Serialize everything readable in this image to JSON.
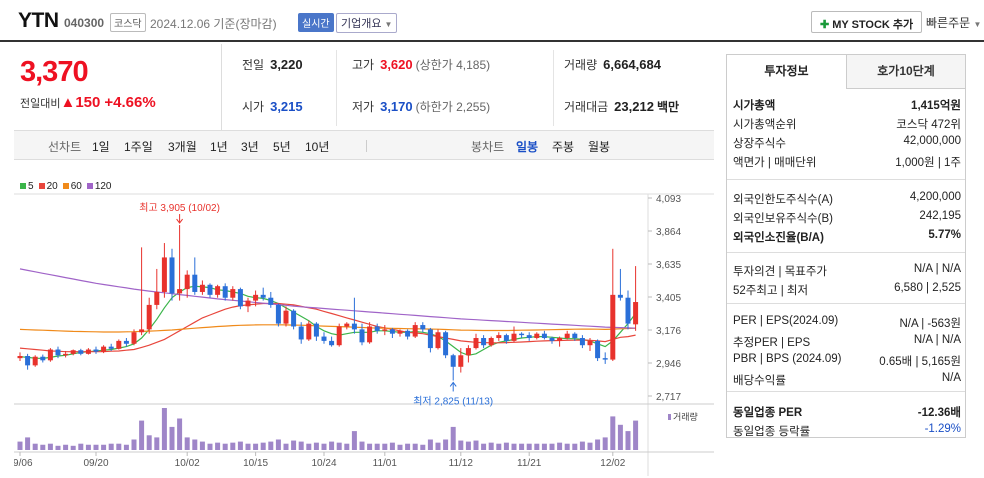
{
  "header": {
    "name": "YTN",
    "code": "040300",
    "market": "코스닥",
    "date": "2024.12.06 기준(장마감)",
    "realtime": "실시간",
    "company_overview": "기업개요",
    "mystock": "MY STOCK 추가",
    "quick_order": "빠른주문"
  },
  "price": {
    "current": "3,370",
    "change_label": "전일대비",
    "change": "150",
    "change_pct": "+4.66%"
  },
  "summary": {
    "prev_close_label": "전일",
    "prev_close": "3,220",
    "high_label": "고가",
    "high": "3,620",
    "upper_limit": "(상한가 4,185)",
    "volume_label": "거래량",
    "volume": "6,664,684",
    "open_label": "시가",
    "open": "3,215",
    "low_label": "저가",
    "low": "3,170",
    "lower_limit": "(하한가 2,255)",
    "amount_label": "거래대금",
    "amount": "23,212",
    "amount_unit": "백만"
  },
  "toolbar": {
    "line_chart_label": "선차트",
    "line_periods": [
      "1일",
      "1주일",
      "3개월",
      "1년",
      "3년",
      "5년",
      "10년"
    ],
    "candle_chart_label": "봉차트",
    "candle_periods": [
      "일봉",
      "주봉",
      "월봉"
    ],
    "active_candle": "일봉"
  },
  "chart_data": {
    "type": "candlestick",
    "legend": [
      {
        "name": "5",
        "color": "#3bb54a"
      },
      {
        "name": "20",
        "color": "#e8463c"
      },
      {
        "name": "60",
        "color": "#f08a1a"
      },
      {
        "name": "120",
        "color": "#a064c8"
      }
    ],
    "y_ticks": [
      "4,093",
      "3,864",
      "3,635",
      "3,405",
      "3,176",
      "2,946",
      "2,717"
    ],
    "ylim": [
      2717,
      4093
    ],
    "x_ticks": [
      "09/06",
      "09/20",
      "10/02",
      "10/15",
      "10/24",
      "11/01",
      "11/12",
      "11/21",
      "12/02"
    ],
    "annotations": {
      "high_label": "최고 3,905 (10/02)",
      "low_label": "최저 2,825 (11/13)"
    },
    "volume_label": "거래량",
    "candles": [
      [
        2980,
        3020,
        2960,
        2995
      ],
      [
        2995,
        3010,
        2900,
        2930
      ],
      [
        2930,
        3000,
        2920,
        2990
      ],
      [
        2990,
        3005,
        2950,
        2965
      ],
      [
        2965,
        3050,
        2955,
        3040
      ],
      [
        3040,
        3060,
        2980,
        3000
      ],
      [
        3000,
        3030,
        2985,
        3010
      ],
      [
        3010,
        3040,
        3000,
        3035
      ],
      [
        3035,
        3045,
        3000,
        3010
      ],
      [
        3010,
        3050,
        3005,
        3040
      ],
      [
        3040,
        3060,
        3010,
        3025
      ],
      [
        3025,
        3070,
        3015,
        3060
      ],
      [
        3060,
        3080,
        3030,
        3045
      ],
      [
        3045,
        3110,
        3040,
        3100
      ],
      [
        3100,
        3120,
        3060,
        3080
      ],
      [
        3080,
        3180,
        3070,
        3160
      ],
      [
        3160,
        3750,
        3140,
        3180
      ],
      [
        3180,
        3400,
        3150,
        3350
      ],
      [
        3350,
        3600,
        3320,
        3440
      ],
      [
        3440,
        3780,
        3400,
        3680
      ],
      [
        3680,
        3740,
        3380,
        3430
      ],
      [
        3430,
        3905,
        3380,
        3460
      ],
      [
        3460,
        3590,
        3400,
        3560
      ],
      [
        3560,
        3680,
        3420,
        3440
      ],
      [
        3440,
        3520,
        3420,
        3490
      ],
      [
        3490,
        3500,
        3400,
        3420
      ],
      [
        3420,
        3490,
        3400,
        3480
      ],
      [
        3480,
        3500,
        3380,
        3400
      ],
      [
        3400,
        3480,
        3380,
        3460
      ],
      [
        3460,
        3470,
        3320,
        3340
      ],
      [
        3340,
        3400,
        3300,
        3380
      ],
      [
        3380,
        3450,
        3340,
        3420
      ],
      [
        3420,
        3470,
        3380,
        3400
      ],
      [
        3400,
        3440,
        3330,
        3350
      ],
      [
        3350,
        3360,
        3200,
        3220
      ],
      [
        3220,
        3340,
        3200,
        3310
      ],
      [
        3310,
        3320,
        3180,
        3200
      ],
      [
        3200,
        3230,
        3080,
        3110
      ],
      [
        3110,
        3240,
        3100,
        3220
      ],
      [
        3220,
        3230,
        3100,
        3130
      ],
      [
        3130,
        3160,
        3080,
        3100
      ],
      [
        3100,
        3130,
        3060,
        3070
      ],
      [
        3070,
        3220,
        3060,
        3200
      ],
      [
        3200,
        3230,
        3180,
        3220
      ],
      [
        3220,
        3400,
        3150,
        3180
      ],
      [
        3180,
        3220,
        3070,
        3090
      ],
      [
        3090,
        3230,
        3080,
        3200
      ],
      [
        3200,
        3220,
        3150,
        3170
      ],
      [
        3170,
        3210,
        3140,
        3180
      ],
      [
        3180,
        3190,
        3120,
        3150
      ],
      [
        3150,
        3180,
        3130,
        3170
      ],
      [
        3170,
        3180,
        3110,
        3130
      ],
      [
        3130,
        3230,
        3120,
        3210
      ],
      [
        3210,
        3230,
        3160,
        3180
      ],
      [
        3180,
        3190,
        3020,
        3050
      ],
      [
        3050,
        3180,
        3040,
        3160
      ],
      [
        3160,
        3170,
        2980,
        3000
      ],
      [
        3000,
        3010,
        2825,
        2920
      ],
      [
        2920,
        3050,
        2880,
        3000
      ],
      [
        3000,
        3070,
        2950,
        3050
      ],
      [
        3050,
        3150,
        3040,
        3120
      ],
      [
        3120,
        3140,
        3050,
        3070
      ],
      [
        3070,
        3130,
        3060,
        3120
      ],
      [
        3120,
        3160,
        3100,
        3140
      ],
      [
        3140,
        3150,
        3080,
        3100
      ],
      [
        3100,
        3200,
        3090,
        3150
      ],
      [
        3150,
        3160,
        3120,
        3140
      ],
      [
        3140,
        3160,
        3100,
        3120
      ],
      [
        3120,
        3160,
        3110,
        3150
      ],
      [
        3150,
        3170,
        3110,
        3120
      ],
      [
        3120,
        3130,
        3080,
        3100
      ],
      [
        3100,
        3130,
        3060,
        3120
      ],
      [
        3120,
        3170,
        3110,
        3150
      ],
      [
        3150,
        3160,
        3100,
        3120
      ],
      [
        3120,
        3140,
        3050,
        3070
      ],
      [
        3070,
        3120,
        3030,
        3100
      ],
      [
        3100,
        3110,
        2960,
        2980
      ],
      [
        2980,
        3020,
        2940,
        2970
      ],
      [
        2970,
        3740,
        2960,
        3420
      ],
      [
        3420,
        3600,
        3380,
        3400
      ],
      [
        3400,
        3450,
        3180,
        3220
      ],
      [
        3215,
        3620,
        3170,
        3370
      ]
    ],
    "volumes": [
      8,
      12,
      6,
      5,
      6,
      4,
      5,
      4,
      6,
      5,
      5,
      5,
      6,
      6,
      5,
      10,
      28,
      14,
      12,
      40,
      22,
      30,
      12,
      10,
      8,
      6,
      7,
      6,
      7,
      8,
      6,
      6,
      7,
      8,
      10,
      6,
      9,
      8,
      6,
      7,
      6,
      8,
      7,
      6,
      18,
      8,
      6,
      6,
      6,
      7,
      5,
      6,
      6,
      5,
      10,
      7,
      10,
      22,
      9,
      8,
      9,
      6,
      7,
      6,
      7,
      6,
      6,
      6,
      6,
      6,
      6,
      7,
      6,
      6,
      8,
      7,
      10,
      12,
      32,
      24,
      18,
      28
    ],
    "ma5": [
      2990,
      2985,
      2980,
      2978,
      2985,
      2995,
      3000,
      3010,
      3020,
      3025,
      3030,
      3035,
      3040,
      3050,
      3060,
      3080,
      3120,
      3180,
      3250,
      3330,
      3400,
      3440,
      3470,
      3480,
      3475,
      3470,
      3455,
      3450,
      3440,
      3430,
      3410,
      3400,
      3395,
      3380,
      3360,
      3330,
      3300,
      3270,
      3240,
      3200,
      3170,
      3150,
      3140,
      3150,
      3160,
      3160,
      3160,
      3170,
      3170,
      3165,
      3160,
      3160,
      3165,
      3160,
      3150,
      3130,
      3100,
      3060,
      3020,
      3000,
      3010,
      3040,
      3070,
      3090,
      3100,
      3110,
      3120,
      3125,
      3130,
      3130,
      3125,
      3120,
      3115,
      3115,
      3110,
      3100,
      3080,
      3060,
      3100,
      3160,
      3220,
      3290
    ],
    "ma20": [
      3050,
      3045,
      3040,
      3035,
      3030,
      3028,
      3025,
      3025,
      3025,
      3025,
      3025,
      3025,
      3028,
      3030,
      3035,
      3040,
      3055,
      3070,
      3090,
      3110,
      3140,
      3170,
      3200,
      3230,
      3260,
      3280,
      3300,
      3320,
      3335,
      3345,
      3350,
      3355,
      3360,
      3360,
      3360,
      3355,
      3350,
      3340,
      3330,
      3320,
      3305,
      3290,
      3275,
      3260,
      3245,
      3230,
      3215,
      3200,
      3190,
      3180,
      3170,
      3160,
      3155,
      3150,
      3140,
      3130,
      3120,
      3110,
      3100,
      3095,
      3090,
      3088,
      3087,
      3087,
      3088,
      3090,
      3092,
      3095,
      3098,
      3100,
      3102,
      3103,
      3104,
      3105,
      3106,
      3104,
      3100,
      3095,
      3110,
      3125,
      3130,
      3140
    ],
    "ma60": [
      3180,
      3178,
      3176,
      3174,
      3172,
      3170,
      3168,
      3166,
      3165,
      3164,
      3163,
      3162,
      3162,
      3162,
      3163,
      3164,
      3166,
      3168,
      3170,
      3173,
      3176,
      3180,
      3184,
      3188,
      3192,
      3196,
      3200,
      3203,
      3206,
      3208,
      3210,
      3211,
      3212,
      3212,
      3212,
      3211,
      3210,
      3209,
      3207,
      3205,
      3203,
      3201,
      3199,
      3197,
      3195,
      3193,
      3191,
      3189,
      3188,
      3187,
      3186,
      3185,
      3184,
      3183,
      3182,
      3181,
      3179,
      3177,
      3175,
      3174,
      3173,
      3172,
      3172,
      3172,
      3172,
      3173,
      3174,
      3175,
      3176,
      3177,
      3178,
      3179,
      3180,
      3181,
      3182,
      3182,
      3181,
      3180,
      3182,
      3184,
      3186,
      3188
    ],
    "ma120": [
      3600,
      3590,
      3580,
      3570,
      3560,
      3550,
      3540,
      3530,
      3520,
      3510,
      3500,
      3492,
      3484,
      3476,
      3468,
      3460,
      3453,
      3446,
      3440,
      3434,
      3428,
      3422,
      3416,
      3410,
      3404,
      3398,
      3392,
      3387,
      3382,
      3377,
      3372,
      3367,
      3362,
      3357,
      3352,
      3347,
      3342,
      3337,
      3333,
      3329,
      3325,
      3321,
      3317,
      3313,
      3309,
      3305,
      3301,
      3297,
      3293,
      3289,
      3285,
      3281,
      3277,
      3273,
      3269,
      3265,
      3261,
      3257,
      3253,
      3250,
      3247,
      3244,
      3241,
      3238,
      3235,
      3232,
      3229,
      3226,
      3223,
      3220,
      3217,
      3214,
      3211,
      3208,
      3205,
      3202,
      3199,
      3196,
      3194,
      3192,
      3190,
      3188
    ]
  },
  "panel": {
    "tab_active": "투자정보",
    "tab_other": "호가10단계",
    "rows1": [
      {
        "label": "시가총액",
        "value": "1,415억원",
        "bold": true
      },
      {
        "label": "시가총액순위",
        "value": "코스닥 472위"
      },
      {
        "label": "상장주식수",
        "value": "42,000,000"
      },
      {
        "label": "액면가 | 매매단위",
        "value": "1,000원 | 1주"
      }
    ],
    "rows2": [
      {
        "label": "외국인한도주식수(A)",
        "value": "4,200,000"
      },
      {
        "label": "외국인보유주식수(B)",
        "value": "242,195"
      },
      {
        "label": "외국인소진율(B/A)",
        "value": "5.77%",
        "bold": true
      }
    ],
    "rows3": [
      {
        "label": "투자의견 | 목표주가",
        "value": "N/A | N/A"
      },
      {
        "label": "52주최고 | 최저",
        "value": "6,580 | 2,525"
      }
    ],
    "rows4": [
      {
        "label": "PER | EPS(2024.09)",
        "value": "N/A | -563원"
      },
      {
        "label": "추정PER | EPS",
        "value": "N/A | N/A"
      },
      {
        "label": "PBR | BPS (2024.09)",
        "value": "0.65배 | 5,165원"
      },
      {
        "label": "배당수익률",
        "value": "N/A"
      }
    ],
    "rows5": [
      {
        "label": "동일업종 PER",
        "value": "-12.36배",
        "bold": true
      },
      {
        "label": "동일업종 등락률",
        "value": "-1.29%",
        "color": "#1a4fc6"
      }
    ]
  }
}
